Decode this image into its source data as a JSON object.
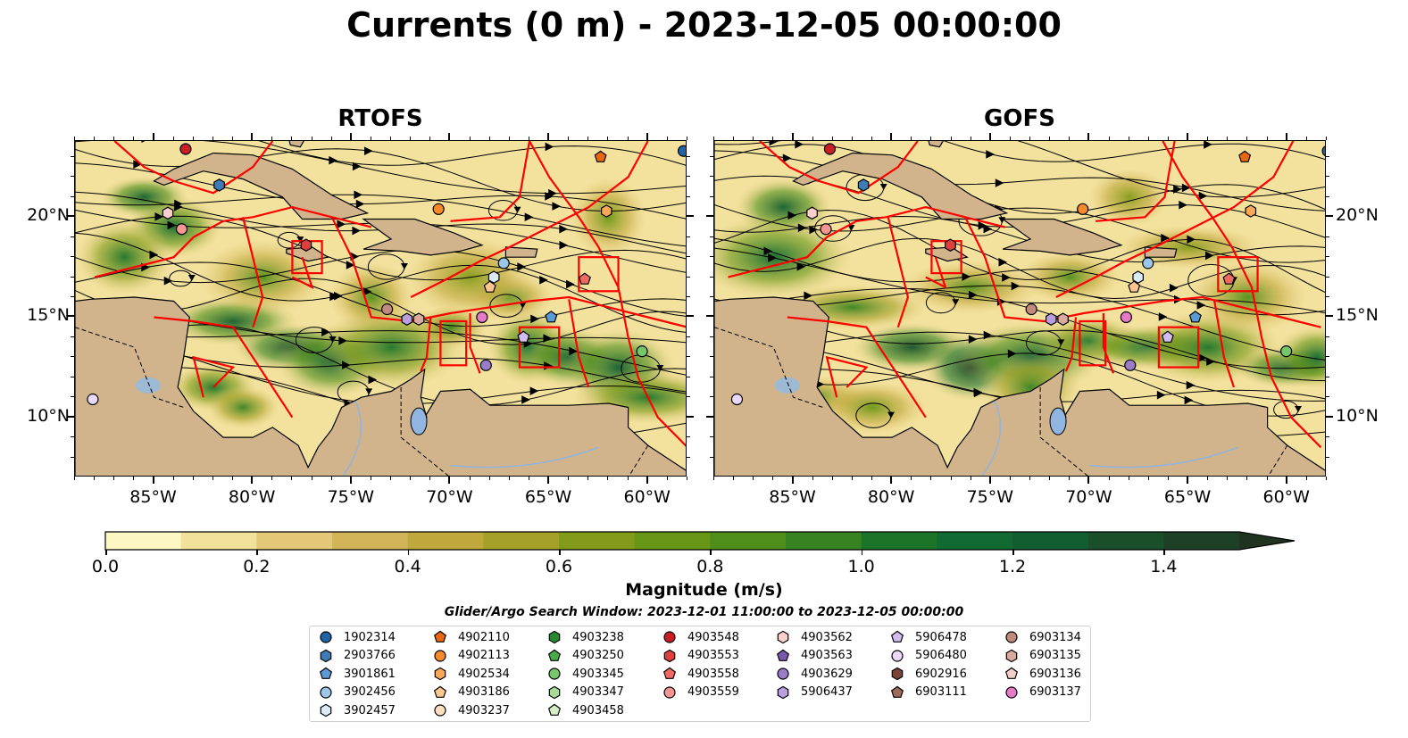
{
  "title": "Currents (0 m) - 2023-12-05 00:00:00",
  "panels": [
    {
      "title": "RTOFS"
    },
    {
      "title": "GOFS"
    }
  ],
  "axes": {
    "lon_ticks": [
      "85°W",
      "80°W",
      "75°W",
      "70°W",
      "65°W",
      "60°W"
    ],
    "lat_ticks": [
      "20°N",
      "15°N",
      "10°N"
    ]
  },
  "colorbar": {
    "label": "Magnitude (m/s)",
    "tick_labels": [
      "0.0",
      "0.2",
      "0.4",
      "0.6",
      "0.8",
      "1.0",
      "1.2",
      "1.4"
    ],
    "colors": [
      "#fdf7c4",
      "#f1e19a",
      "#e3c977",
      "#d2b459",
      "#bfa83c",
      "#a5a128",
      "#839b1a",
      "#689616",
      "#4f8e1b",
      "#378321",
      "#1c7429",
      "#116a32",
      "#135e31",
      "#1a4f2c",
      "#1d4026",
      "#1f3320"
    ]
  },
  "search_window": "Glider/Argo Search Window: 2023-12-01 11:00:00 to 2023-12-05 00:00:00",
  "legend": {
    "columns": [
      [
        {
          "label": "1902314",
          "marker": "circle",
          "color": "#1f63a8"
        },
        {
          "label": "2903766",
          "marker": "hexagon",
          "color": "#3d7cb8"
        },
        {
          "label": "3901861",
          "marker": "pentagon",
          "color": "#5b9bd5"
        },
        {
          "label": "3902456",
          "marker": "circle",
          "color": "#9cc6ec"
        },
        {
          "label": "3902457",
          "marker": "hexagon",
          "color": "#dcebf8"
        }
      ],
      [
        {
          "label": "4902110",
          "marker": "pentagon",
          "color": "#e9670f"
        },
        {
          "label": "4902113",
          "marker": "circle",
          "color": "#f7892a"
        },
        {
          "label": "4902534",
          "marker": "hexagon",
          "color": "#fba75a"
        },
        {
          "label": "4903186",
          "marker": "pentagon",
          "color": "#fcc68f"
        },
        {
          "label": "4903237",
          "marker": "circle",
          "color": "#fde0c0"
        }
      ],
      [
        {
          "label": "4903238",
          "marker": "hexagon",
          "color": "#238b2e"
        },
        {
          "label": "4903250",
          "marker": "pentagon",
          "color": "#47ad48"
        },
        {
          "label": "4903345",
          "marker": "circle",
          "color": "#76c66a"
        },
        {
          "label": "4903347",
          "marker": "hexagon",
          "color": "#a6dc94"
        },
        {
          "label": "4903458",
          "marker": "pentagon",
          "color": "#d3f0c7"
        }
      ],
      [
        {
          "label": "4903548",
          "marker": "circle",
          "color": "#c91f24"
        },
        {
          "label": "4903553",
          "marker": "hexagon",
          "color": "#de3f3c"
        },
        {
          "label": "4903558",
          "marker": "pentagon",
          "color": "#ef6a62"
        },
        {
          "label": "4903559",
          "marker": "circle",
          "color": "#f59692"
        }
      ],
      [
        {
          "label": "4903562",
          "marker": "hexagon",
          "color": "#fbcfcc"
        },
        {
          "label": "4903563",
          "marker": "pentagon",
          "color": "#7b58b0"
        },
        {
          "label": "4903629",
          "marker": "circle",
          "color": "#9b7cc8"
        },
        {
          "label": "5906437",
          "marker": "hexagon",
          "color": "#b99fe0"
        }
      ],
      [
        {
          "label": "5906478",
          "marker": "pentagon",
          "color": "#d2bdf0"
        },
        {
          "label": "5906480",
          "marker": "circle",
          "color": "#ead9fb"
        },
        {
          "label": "6902916",
          "marker": "hexagon",
          "color": "#7a4336"
        },
        {
          "label": "6903111",
          "marker": "pentagon",
          "color": "#a0695a"
        }
      ],
      [
        {
          "label": "6903134",
          "marker": "circle",
          "color": "#c08a7c"
        },
        {
          "label": "6903135",
          "marker": "hexagon",
          "color": "#d9ab9f"
        },
        {
          "label": "6903136",
          "marker": "pentagon",
          "color": "#f2cfc6"
        },
        {
          "label": "6903137",
          "marker": "circle",
          "color": "#e67ac8"
        }
      ]
    ]
  }
}
